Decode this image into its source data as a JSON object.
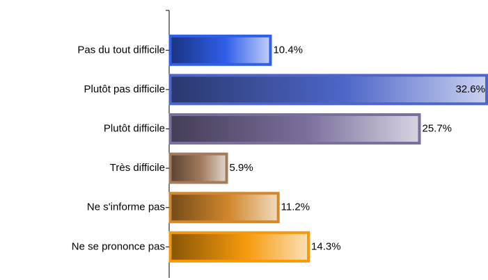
{
  "chart_data": {
    "type": "barh",
    "categories": [
      "Pas du tout difficile",
      "Plutôt pas difficile",
      "Plutôt difficile",
      "Très difficile",
      "Ne s'informe pas",
      "Ne se prononce pas"
    ],
    "values": [
      10.4,
      32.6,
      25.7,
      5.9,
      11.2,
      14.3
    ],
    "value_labels": [
      "10.4%",
      "32.6%",
      "25.7%",
      "5.9%",
      "11.2%",
      "14.3%"
    ],
    "colors": [
      "#2f5ee8",
      "#4d66c8",
      "#7b6f9c",
      "#a27a5c",
      "#d2882e",
      "#f69a0c"
    ]
  }
}
